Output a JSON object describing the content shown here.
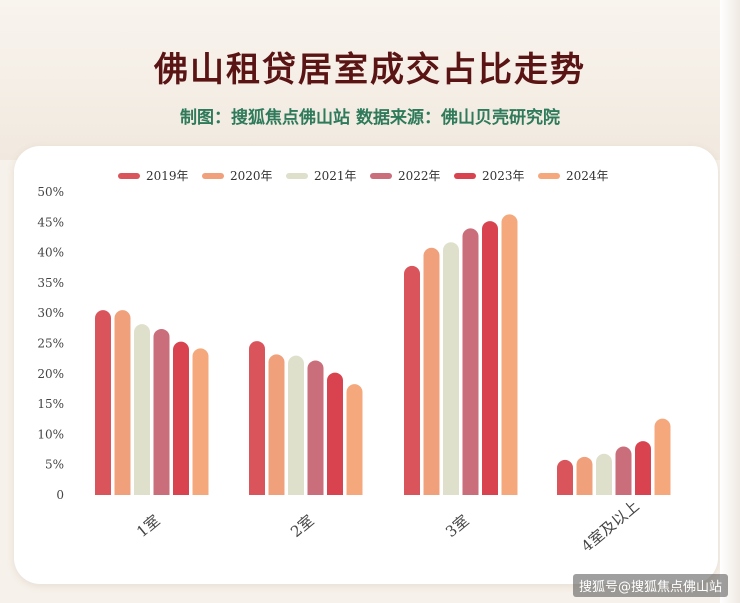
{
  "header": {
    "title": "佛山租贷居室成交占比走势",
    "subtitle": "制图：搜狐焦点佛山站  数据来源：佛山贝壳研究院"
  },
  "watermark": "搜狐号@搜狐焦点佛山站",
  "chart_data": {
    "type": "bar",
    "title": "佛山租贷居室成交占比走势",
    "xlabel": "",
    "ylabel": "",
    "categories": [
      "1室",
      "2室",
      "3室",
      "4室及以上"
    ],
    "series": [
      {
        "name": "2019年",
        "color": "#d9555b",
        "values": [
          30.5,
          25.4,
          37.8,
          5.8
        ]
      },
      {
        "name": "2020年",
        "color": "#f0a07a",
        "values": [
          30.5,
          23.2,
          40.8,
          6.3
        ]
      },
      {
        "name": "2021年",
        "color": "#dfe0cc",
        "values": [
          28.2,
          23.0,
          41.7,
          6.8
        ]
      },
      {
        "name": "2022年",
        "color": "#c96e7a",
        "values": [
          27.4,
          22.2,
          44.0,
          8.0
        ]
      },
      {
        "name": "2023年",
        "color": "#d9434f",
        "values": [
          25.3,
          20.2,
          45.2,
          8.9
        ]
      },
      {
        "name": "2024年",
        "color": "#f4a87c",
        "values": [
          24.2,
          18.3,
          46.3,
          12.6
        ]
      }
    ],
    "yticks": [
      "0",
      "5%",
      "10%",
      "15%",
      "20%",
      "25%",
      "30%",
      "35%",
      "40%",
      "45%",
      "50%"
    ],
    "ylim": [
      0,
      50
    ],
    "grid": false,
    "legend": "top"
  }
}
